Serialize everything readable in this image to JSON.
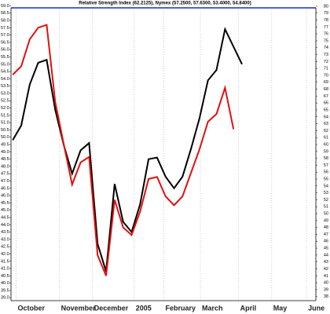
{
  "chart_data": {
    "type": "line",
    "title": "Relative Strength Index (62.2125), Nymex (57.2500, 57.6300, 53.4000, 54.8400)",
    "x": [
      0,
      1,
      2,
      3,
      4,
      5,
      6,
      7,
      8,
      9,
      10,
      11,
      12,
      13,
      14,
      15,
      16,
      17,
      18,
      19,
      20,
      21,
      22,
      23,
      24,
      25,
      26,
      27
    ],
    "xlim": [
      -0.2,
      35.7
    ],
    "xticks": [
      {
        "value": 0.4,
        "label": "October"
      },
      {
        "value": 5.5,
        "label": "November"
      },
      {
        "value": 9.4,
        "label": "December"
      },
      {
        "value": 14.3,
        "label": "2005"
      },
      {
        "value": 17.8,
        "label": "February"
      },
      {
        "value": 22.1,
        "label": "March"
      },
      {
        "value": 26.6,
        "label": "April"
      },
      {
        "value": 30.5,
        "label": "May"
      },
      {
        "value": 34.6,
        "label": "June"
      }
    ],
    "series": [
      {
        "name": "Nymex",
        "color": "#000000",
        "axis": "y",
        "values": [
          49.8,
          50.8,
          53.6,
          55.1,
          55.3,
          51.9,
          49.5,
          47.5,
          49.1,
          49.6,
          42.7,
          40.8,
          46.8,
          44.2,
          43.5,
          45.4,
          48.5,
          48.6,
          47.3,
          46.5,
          47.3,
          49.2,
          51.3,
          53.9,
          54.6,
          57.4,
          56.2,
          55.0
        ]
      },
      {
        "name": "Relative Strength Index",
        "color": "#e01010",
        "axis": "y2",
        "values": [
          70.1,
          71.3,
          75.2,
          76.9,
          77.3,
          66.2,
          60.1,
          54.2,
          57.4,
          58.2,
          44.0,
          41.0,
          52.0,
          48.0,
          46.9,
          50.3,
          55.0,
          55.3,
          52.5,
          51.2,
          52.5,
          55.9,
          59.3,
          63.3,
          64.4,
          68.2,
          62.2,
          null
        ]
      }
    ],
    "ylim": [
      38.8,
      59.4
    ],
    "yticks": [
      {
        "value": 59,
        "label": "59.0"
      },
      58.5,
      {
        "value": 58,
        "label": "58.0"
      },
      57.5,
      {
        "value": 57,
        "label": "57.0"
      },
      56.5,
      {
        "value": 56,
        "label": "56.0"
      },
      55.5,
      {
        "value": 55,
        "label": "55.0"
      },
      54.5,
      {
        "value": 54,
        "label": "54.0"
      },
      53.5,
      {
        "value": 53,
        "label": "53.0"
      },
      52.5,
      {
        "value": 52,
        "label": "52.0"
      },
      51.5,
      {
        "value": 51,
        "label": "51.0"
      },
      50.5,
      {
        "value": 50,
        "label": "50.0"
      },
      49.5,
      {
        "value": 49,
        "label": "49.0"
      },
      48.5,
      {
        "value": 48,
        "label": "48.0"
      },
      47.5,
      {
        "value": 47,
        "label": "47.0"
      },
      46.5,
      {
        "value": 46,
        "label": "46.0"
      },
      45.5,
      {
        "value": 45,
        "label": "45.0"
      },
      44.5,
      {
        "value": 44,
        "label": "44.0"
      },
      43.5,
      {
        "value": 43,
        "label": "43.0"
      },
      42.5,
      {
        "value": 42,
        "label": "42.0"
      },
      41.5,
      {
        "value": 41,
        "label": "41.0"
      },
      40.5,
      {
        "value": 40,
        "label": "40.0"
      },
      39.5,
      {
        "value": 39,
        "label": "39.0"
      }
    ],
    "y2lim": [
      37.4,
      80.9
    ],
    "y2ticks": [
      80,
      79,
      78,
      77,
      76,
      75,
      74,
      73,
      72,
      71,
      70,
      69,
      68,
      67,
      66,
      65,
      64,
      63,
      62,
      61,
      60,
      59,
      58,
      57,
      56,
      55,
      54,
      53,
      52,
      51,
      50,
      49,
      48,
      47,
      46,
      45,
      44,
      43,
      42,
      41,
      40,
      39,
      38
    ],
    "grid": true
  }
}
